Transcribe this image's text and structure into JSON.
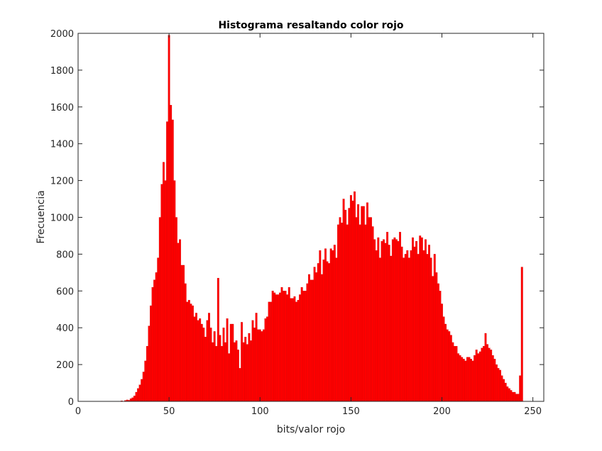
{
  "chart_data": {
    "type": "bar",
    "title": "Histograma resaltando color rojo",
    "xlabel": "bits/valor rojo",
    "ylabel": "Frecuencia",
    "xlim": [
      0,
      256
    ],
    "ylim": [
      0,
      2000
    ],
    "xticks": [
      0,
      50,
      100,
      150,
      200,
      250
    ],
    "yticks": [
      0,
      200,
      400,
      600,
      800,
      1000,
      1200,
      1400,
      1600,
      1800,
      2000
    ],
    "grid": false,
    "bar_color": "#ff0000",
    "bar_edge_color": "#cc0000",
    "axis_color": "#262626",
    "x_start": 0,
    "counts": [
      0,
      0,
      0,
      0,
      0,
      0,
      0,
      0,
      0,
      0,
      0,
      0,
      0,
      0,
      0,
      0,
      0,
      0,
      0,
      0,
      0,
      0,
      0,
      0,
      3,
      0,
      5,
      8,
      6,
      15,
      20,
      30,
      50,
      70,
      90,
      120,
      160,
      220,
      300,
      410,
      520,
      620,
      660,
      700,
      780,
      1000,
      1180,
      1300,
      1200,
      1520,
      1990,
      1610,
      1530,
      1200,
      1000,
      860,
      880,
      740,
      740,
      640,
      540,
      550,
      530,
      520,
      460,
      480,
      440,
      450,
      420,
      400,
      350,
      440,
      480,
      400,
      320,
      380,
      300,
      670,
      360,
      300,
      400,
      320,
      450,
      260,
      420,
      420,
      320,
      330,
      280,
      180,
      430,
      320,
      350,
      310,
      370,
      330,
      440,
      400,
      480,
      390,
      390,
      380,
      390,
      450,
      460,
      540,
      540,
      600,
      590,
      580,
      580,
      590,
      620,
      600,
      600,
      580,
      620,
      560,
      560,
      570,
      540,
      550,
      580,
      620,
      600,
      600,
      640,
      690,
      660,
      660,
      730,
      700,
      750,
      820,
      690,
      770,
      830,
      760,
      750,
      830,
      820,
      850,
      780,
      960,
      1000,
      970,
      1100,
      1040,
      960,
      1050,
      1120,
      1090,
      1140,
      1000,
      1070,
      960,
      1060,
      1060,
      960,
      1080,
      1000,
      1000,
      950,
      880,
      820,
      890,
      780,
      870,
      880,
      860,
      920,
      850,
      790,
      880,
      890,
      880,
      870,
      920,
      840,
      780,
      800,
      820,
      780,
      820,
      890,
      840,
      870,
      800,
      900,
      890,
      820,
      880,
      800,
      850,
      780,
      680,
      800,
      700,
      640,
      600,
      530,
      460,
      420,
      390,
      380,
      360,
      320,
      300,
      300,
      260,
      250,
      240,
      230,
      220,
      240,
      240,
      230,
      220,
      250,
      280,
      260,
      270,
      290,
      300,
      370,
      310,
      290,
      280,
      250,
      230,
      200,
      180,
      170,
      140,
      120,
      100,
      80,
      70,
      60,
      50,
      50,
      40,
      40,
      140,
      730
    ]
  }
}
